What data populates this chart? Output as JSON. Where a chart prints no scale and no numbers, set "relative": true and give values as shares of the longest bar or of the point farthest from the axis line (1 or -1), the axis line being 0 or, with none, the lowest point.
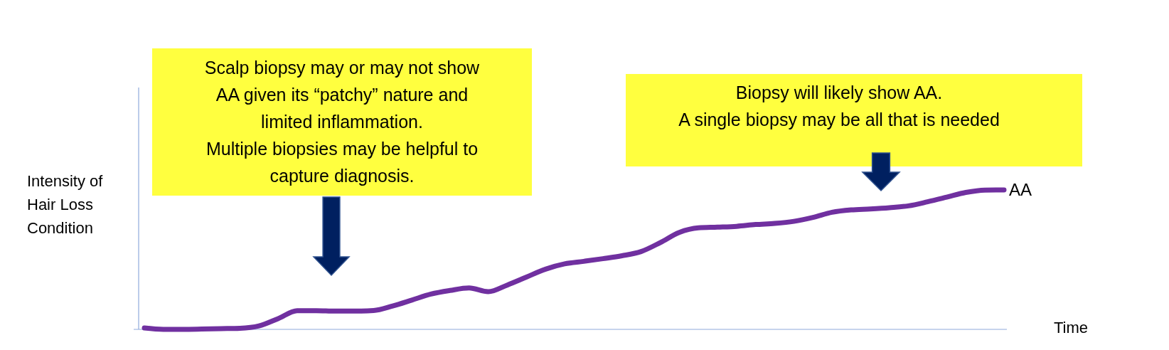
{
  "chart_data": {
    "type": "line",
    "relative": true,
    "xlabel": "Time",
    "ylabel": "Intensity of Hair Loss Condition",
    "marker": "none",
    "line_style": "solid",
    "categories": [
      null,
      null,
      null,
      null,
      null,
      null,
      null,
      null,
      null,
      null,
      null,
      null,
      null,
      null,
      null,
      null,
      null,
      null,
      null,
      null,
      null,
      null,
      null,
      null,
      null,
      null,
      null,
      null,
      null,
      null,
      null,
      null,
      null,
      null,
      null,
      null,
      null,
      null,
      null,
      null,
      null,
      null,
      null,
      null,
      null,
      null
    ],
    "series": [
      {
        "name": "AA",
        "color": "#7030a0",
        "values": [
          0.01,
          0,
          0,
          0.002,
          0.005,
          0.008,
          0.025,
          0.077,
          0.134,
          0.134,
          0.131,
          0.131,
          0.135,
          0.168,
          0.21,
          0.253,
          0.279,
          0.297,
          0.27,
          0.318,
          0.375,
          0.432,
          0.47,
          0.488,
          0.507,
          0.528,
          0.558,
          0.622,
          0.695,
          0.728,
          0.733,
          0.739,
          0.752,
          0.76,
          0.775,
          0.803,
          0.84,
          0.857,
          0.864,
          0.873,
          0.886,
          0.915,
          0.948,
          0.982,
          0.999,
          1
        ]
      }
    ],
    "annotations": [
      "Scalp biopsy may or may not show\nAA given its “patchy” nature and\nlimited inflammation.\nMultiple biopsies may be helpful to\ncapture diagnosis.",
      "Biopsy will likely show AA.\nA single biopsy may be all that is needed"
    ]
  }
}
